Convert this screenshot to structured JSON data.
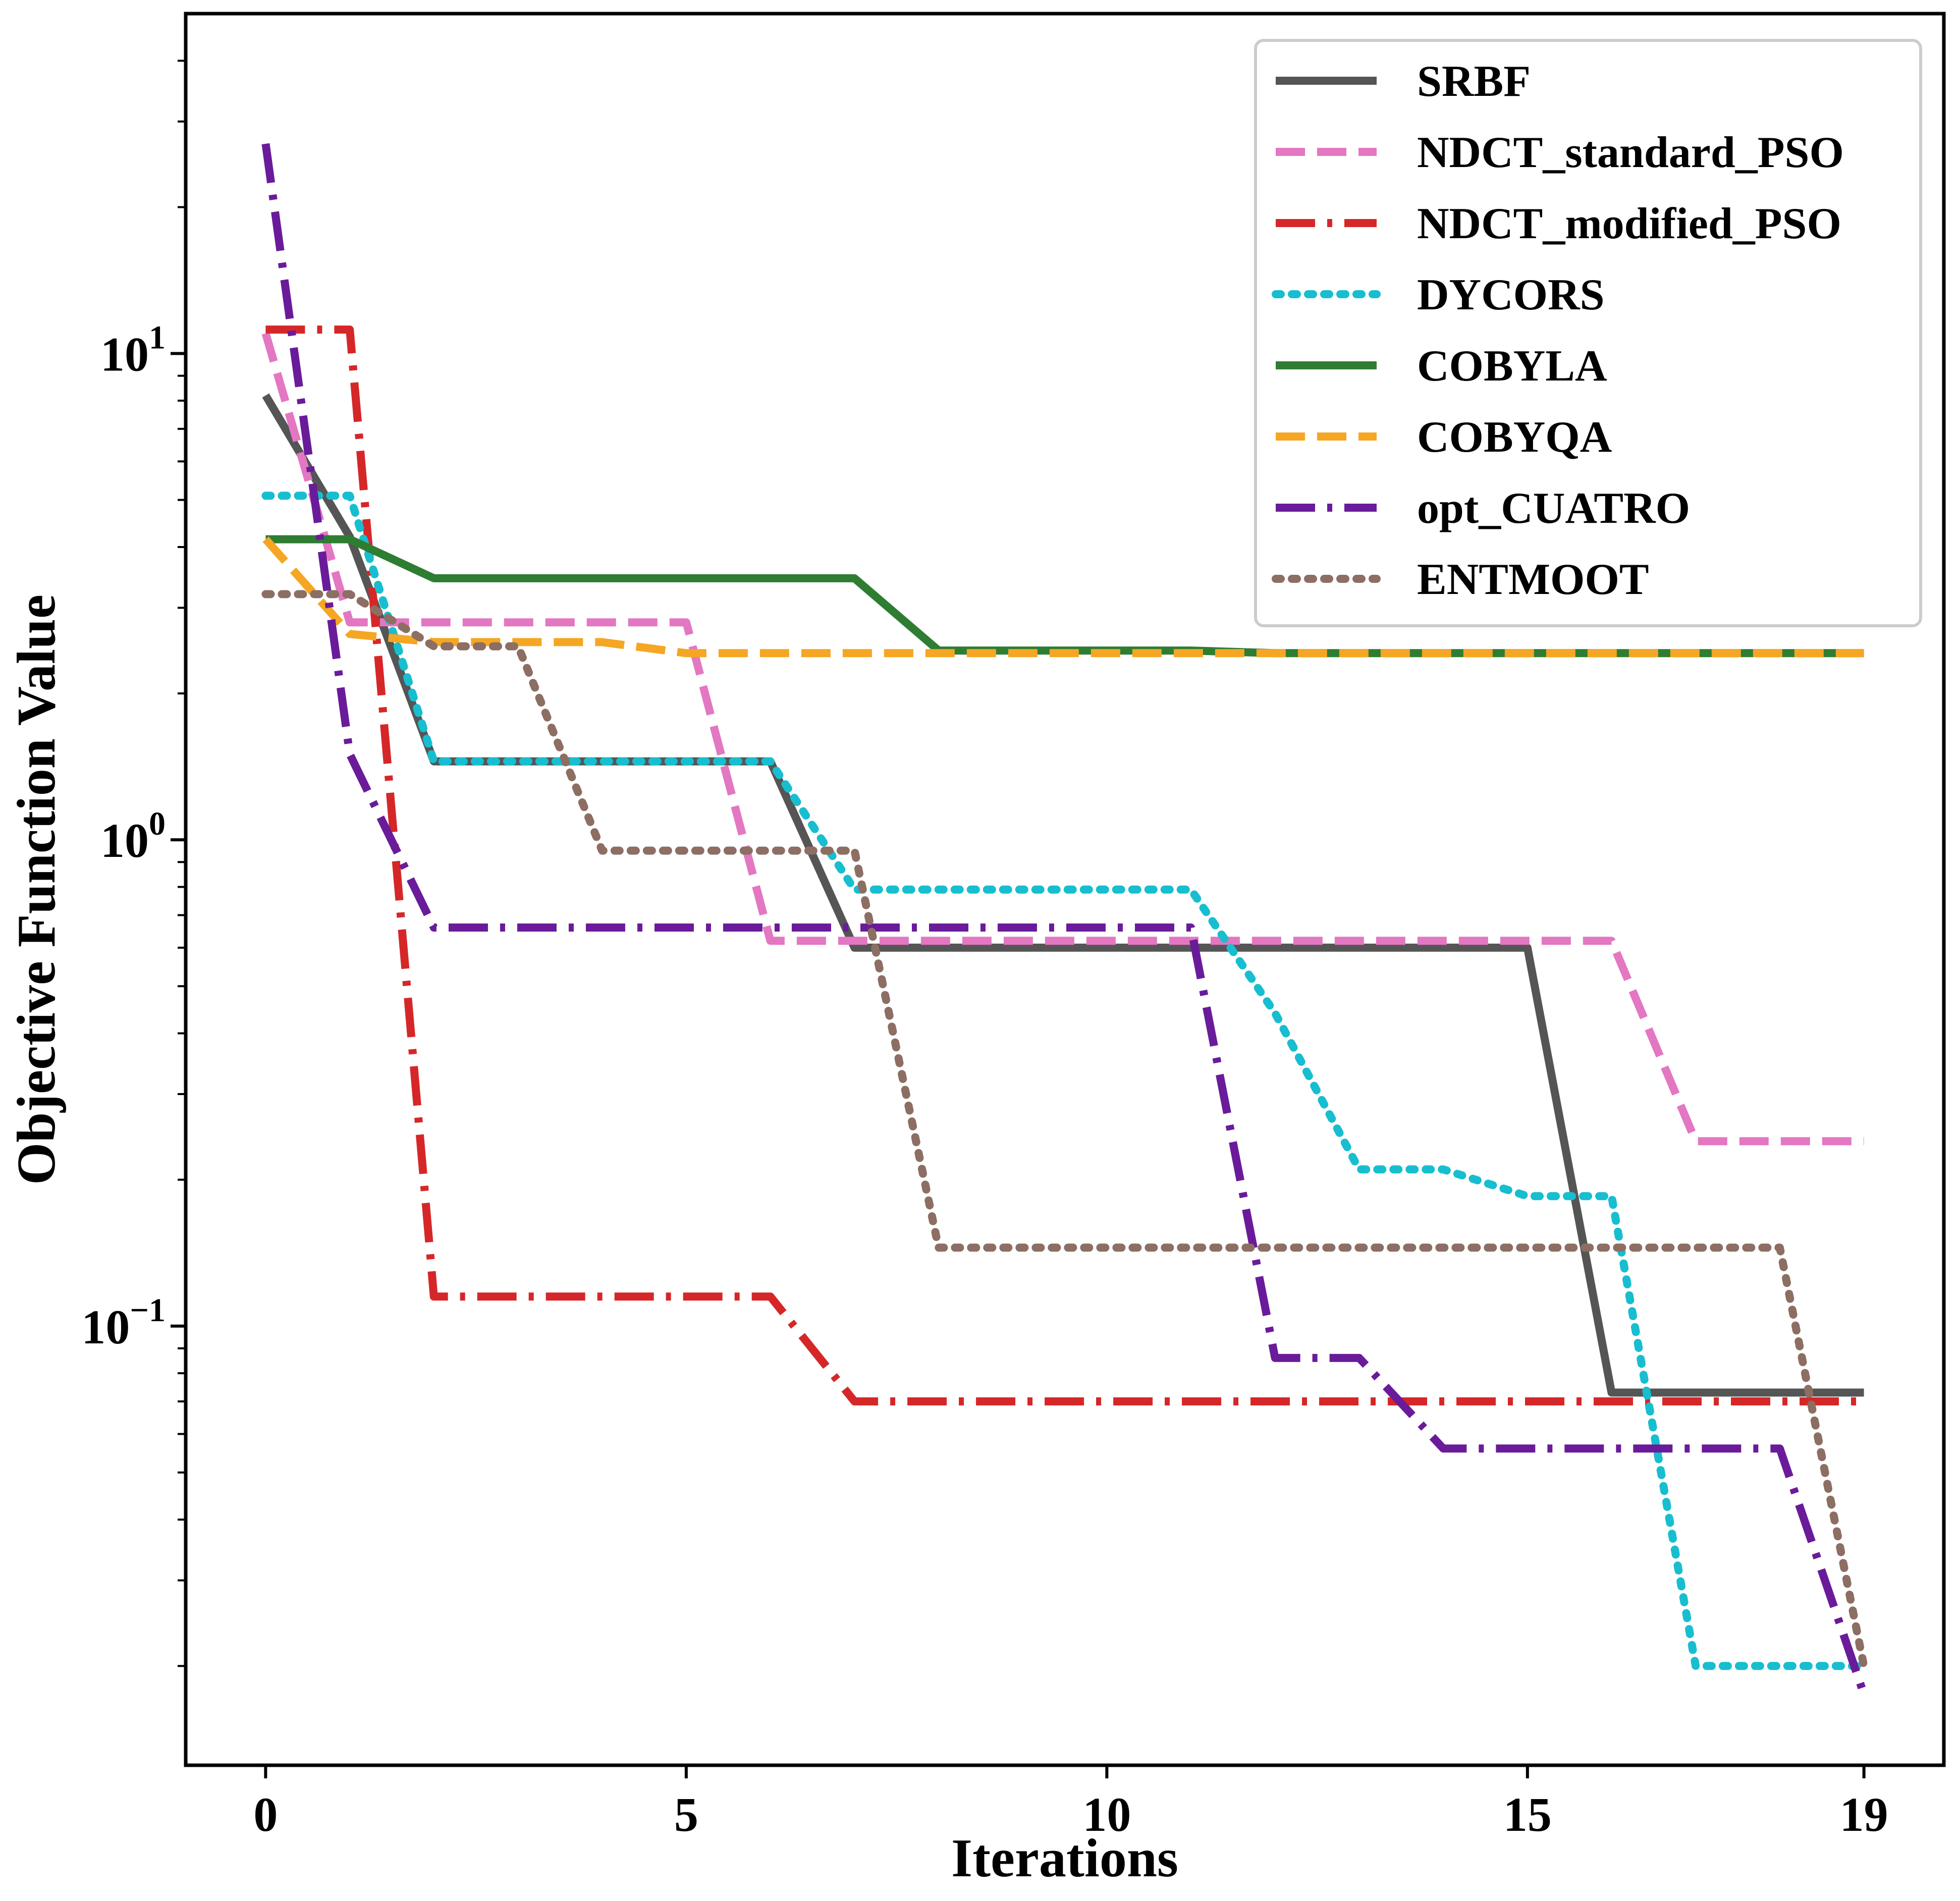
{
  "chart_data": {
    "type": "line",
    "title": "",
    "xlabel": "Iterations",
    "ylabel": "Objective Function Value",
    "yscale": "log",
    "xlim": [
      -0.95,
      19.95
    ],
    "ylim": [
      0.0125,
      50
    ],
    "xticks": [
      {
        "value": 0,
        "label": "0"
      },
      {
        "value": 5,
        "label": "5"
      },
      {
        "value": 10,
        "label": "10"
      },
      {
        "value": 15,
        "label": "15"
      },
      {
        "value": 19,
        "label": "19"
      }
    ],
    "yticks": [
      {
        "value": 10,
        "base": "10",
        "exp": "1"
      },
      {
        "value": 1,
        "base": "10",
        "exp": "0"
      },
      {
        "value": 0.1,
        "base": "10",
        "exp": "−1"
      }
    ],
    "grid": false,
    "legend_position": "upper-right",
    "x": [
      0,
      1,
      2,
      3,
      4,
      5,
      6,
      7,
      8,
      9,
      10,
      11,
      12,
      13,
      14,
      15,
      16,
      17,
      18,
      19
    ],
    "series": [
      {
        "name": "SRBF",
        "color": "#555555",
        "style": "solid",
        "values": [
          8.2,
          4.2,
          1.45,
          1.45,
          1.45,
          1.45,
          1.45,
          0.6,
          0.6,
          0.6,
          0.6,
          0.6,
          0.6,
          0.6,
          0.6,
          0.6,
          0.073,
          0.073,
          0.073,
          0.073
        ]
      },
      {
        "name": "NDCT_standard_PSO",
        "color": "#e377c2",
        "style": "dashed",
        "values": [
          11,
          2.8,
          2.8,
          2.8,
          2.8,
          2.8,
          0.62,
          0.62,
          0.62,
          0.62,
          0.62,
          0.62,
          0.62,
          0.62,
          0.62,
          0.62,
          0.62,
          0.24,
          0.24,
          0.24
        ]
      },
      {
        "name": "NDCT_modified_PSO",
        "color": "#d62728",
        "style": "dashdot",
        "values": [
          11.2,
          11.2,
          0.115,
          0.115,
          0.115,
          0.115,
          0.115,
          0.07,
          0.07,
          0.07,
          0.07,
          0.07,
          0.07,
          0.07,
          0.07,
          0.07,
          0.07,
          0.07,
          0.07,
          0.07
        ]
      },
      {
        "name": "DYCORS",
        "color": "#17becf",
        "style": "dotted",
        "values": [
          5.1,
          5.1,
          1.45,
          1.45,
          1.45,
          1.45,
          1.45,
          0.79,
          0.79,
          0.79,
          0.79,
          0.79,
          0.44,
          0.21,
          0.21,
          0.185,
          0.185,
          0.02,
          0.02,
          0.02
        ]
      },
      {
        "name": "COBYLA",
        "color": "#2e7d32",
        "style": "solid",
        "values": [
          4.15,
          4.15,
          3.45,
          3.45,
          3.45,
          3.45,
          3.45,
          3.45,
          2.45,
          2.45,
          2.45,
          2.45,
          2.42,
          2.42,
          2.42,
          2.42,
          2.42,
          2.42,
          2.42,
          2.42
        ]
      },
      {
        "name": "COBYQA",
        "color": "#f5a623",
        "style": "dashed",
        "values": [
          4.15,
          2.65,
          2.55,
          2.55,
          2.55,
          2.42,
          2.42,
          2.42,
          2.42,
          2.42,
          2.42,
          2.42,
          2.42,
          2.42,
          2.42,
          2.42,
          2.42,
          2.42,
          2.42,
          2.42
        ]
      },
      {
        "name": "opt_CUATRO",
        "color": "#6a1b9a",
        "style": "dashdot",
        "values": [
          27,
          1.5,
          0.66,
          0.66,
          0.66,
          0.66,
          0.66,
          0.66,
          0.66,
          0.66,
          0.66,
          0.66,
          0.086,
          0.086,
          0.056,
          0.056,
          0.056,
          0.056,
          0.056,
          0.0175
        ]
      },
      {
        "name": "ENTMOOT",
        "color": "#8d6e63",
        "style": "dotted",
        "values": [
          3.2,
          3.2,
          2.5,
          2.5,
          0.95,
          0.95,
          0.95,
          0.95,
          0.145,
          0.145,
          0.145,
          0.145,
          0.145,
          0.145,
          0.145,
          0.145,
          0.145,
          0.145,
          0.145,
          0.02
        ]
      }
    ]
  }
}
